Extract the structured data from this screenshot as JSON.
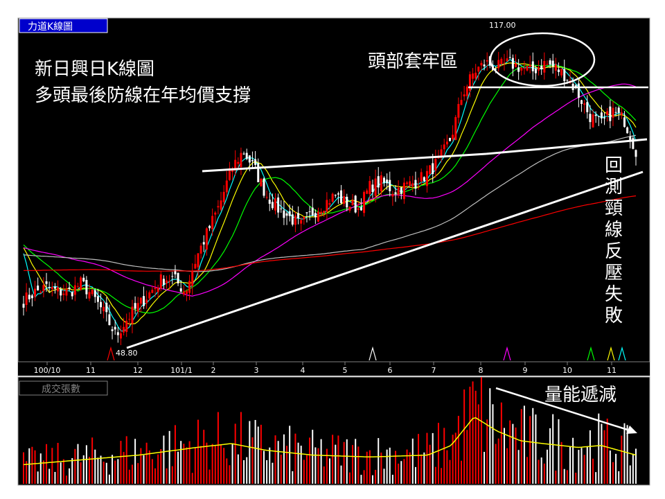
{
  "price_panel": {
    "tab": "力道K線圖",
    "high_label": "117.00",
    "low_label": "48.80"
  },
  "volume_panel": {
    "tab": "成交張數"
  },
  "annotations": {
    "title_line1": "新日興日K線圖",
    "title_line2": "多頭最後防線在年均價支撐",
    "head_zone": "頭部套牢區",
    "retest_vertical": [
      "回",
      "測",
      "頸",
      "線",
      "反",
      "壓",
      "失",
      "敗"
    ],
    "volume_shrink": "量能遞減"
  },
  "colors": {
    "background": "#000000",
    "up_candle": "#ff0000",
    "down_candle": "#ffffff",
    "ma_short": "#00ffff",
    "ma_mid": "#ffff00",
    "ma_20": "#00ff00",
    "ma_60": "#ff00ff",
    "ma_120": "#c0c0c0",
    "ma_240": "#ff0000",
    "vol_avg": "#ffff00",
    "annotation": "#ffffff",
    "tab_bg": "#0000cc"
  },
  "chart_data": {
    "type": "candlestick",
    "title": "",
    "x_ticks": [
      "100/10",
      "11",
      "12",
      "101/1",
      "2",
      "3",
      "4",
      "5",
      "6",
      "7",
      "8",
      "9",
      "10",
      "11"
    ],
    "ylim": [
      46,
      120
    ],
    "price_path": [
      [
        0,
        58
      ],
      [
        2,
        60
      ],
      [
        4,
        61
      ],
      [
        6,
        60
      ],
      [
        8,
        60
      ],
      [
        10,
        62
      ],
      [
        12,
        59
      ],
      [
        14,
        55
      ],
      [
        16,
        50
      ],
      [
        18,
        54
      ],
      [
        20,
        57
      ],
      [
        22,
        60
      ],
      [
        24,
        63
      ],
      [
        26,
        63
      ],
      [
        28,
        60
      ],
      [
        30,
        68
      ],
      [
        32,
        74
      ],
      [
        34,
        80
      ],
      [
        36,
        88
      ],
      [
        38,
        92
      ],
      [
        40,
        88
      ],
      [
        42,
        82
      ],
      [
        44,
        79
      ],
      [
        46,
        77
      ],
      [
        48,
        75
      ],
      [
        50,
        78
      ],
      [
        52,
        80
      ],
      [
        54,
        82
      ],
      [
        56,
        80
      ],
      [
        58,
        79
      ],
      [
        60,
        84
      ],
      [
        62,
        85
      ],
      [
        64,
        83
      ],
      [
        66,
        84
      ],
      [
        68,
        85
      ],
      [
        70,
        87
      ],
      [
        72,
        90
      ],
      [
        74,
        95
      ],
      [
        76,
        105
      ],
      [
        78,
        110
      ],
      [
        80,
        112
      ],
      [
        82,
        111
      ],
      [
        84,
        112
      ],
      [
        86,
        111
      ],
      [
        88,
        110
      ],
      [
        90,
        112
      ],
      [
        92,
        111
      ],
      [
        94,
        109
      ],
      [
        96,
        105
      ],
      [
        98,
        100
      ],
      [
        100,
        98
      ],
      [
        102,
        101
      ],
      [
        104,
        99
      ],
      [
        106,
        92
      ]
    ],
    "moving_averages": [
      {
        "name": "",
        "color": "#00ffff",
        "period": 5
      },
      {
        "name": "",
        "color": "#ffff00",
        "period": 10
      },
      {
        "name": "",
        "color": "#00ff00",
        "period": 20
      },
      {
        "name": "",
        "color": "#ff00ff",
        "period": 60
      },
      {
        "name": "",
        "color": "#c0c0c0",
        "period": 120
      },
      {
        "name": "",
        "color": "#ff0000",
        "period": 240
      }
    ],
    "volume_ylim": [
      0,
      100
    ],
    "volume_profile": [
      [
        0,
        20
      ],
      [
        10,
        25
      ],
      [
        20,
        30
      ],
      [
        30,
        38
      ],
      [
        36,
        42
      ],
      [
        42,
        35
      ],
      [
        50,
        30
      ],
      [
        60,
        28
      ],
      [
        70,
        30
      ],
      [
        74,
        40
      ],
      [
        78,
        70
      ],
      [
        82,
        55
      ],
      [
        86,
        45
      ],
      [
        90,
        42
      ],
      [
        96,
        38
      ],
      [
        100,
        40
      ],
      [
        106,
        30
      ]
    ]
  }
}
